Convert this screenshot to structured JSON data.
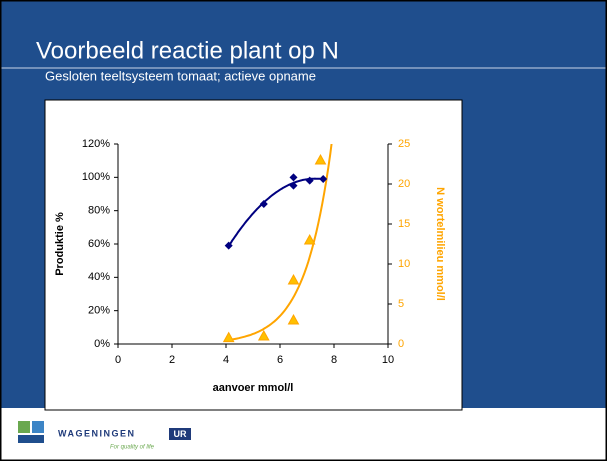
{
  "slide": {
    "title": "Voorbeeld reactie plant op N",
    "subtitle": "Gesloten teeltsysteem tomaat;   actieve opname"
  },
  "logo": {
    "name": "WAGENINGEN",
    "badge": "UR",
    "tagline": "For quality of life"
  },
  "chart_data": {
    "type": "scatter",
    "xlabel": "aanvoer mmol/l",
    "ylabel": "Produktie  %",
    "y2label": "N wortelmilieu mmol/l",
    "xlim": [
      0,
      10
    ],
    "xticks": [
      0,
      2,
      4,
      6,
      8,
      10
    ],
    "ylim": [
      0,
      120
    ],
    "yticks": [
      {
        "value": 0,
        "label": "0%"
      },
      {
        "value": 20,
        "label": "20%"
      },
      {
        "value": 40,
        "label": "40%"
      },
      {
        "value": 60,
        "label": "60%"
      },
      {
        "value": 80,
        "label": "80%"
      },
      {
        "value": 100,
        "label": "100%"
      },
      {
        "value": 120,
        "label": "120%"
      }
    ],
    "y2lim": [
      0,
      25
    ],
    "y2ticks": [
      0,
      5,
      10,
      15,
      20,
      25
    ],
    "series": [
      {
        "x": [
          4.1,
          5.4,
          6.5,
          6.5,
          7.1,
          7.6
        ],
        "values": [
          59,
          84,
          100,
          95,
          98,
          99
        ],
        "color": "#000080",
        "marker": "diamond",
        "trendline": "polynomial"
      },
      {
        "x": [
          4.1,
          5.4,
          6.5,
          6.5,
          7.1,
          7.5
        ],
        "values": [
          0.8,
          1,
          8,
          3,
          13,
          23
        ],
        "color": "#ffa500",
        "marker": "triangle",
        "trendline": "exponential",
        "axis": "y2"
      }
    ]
  }
}
